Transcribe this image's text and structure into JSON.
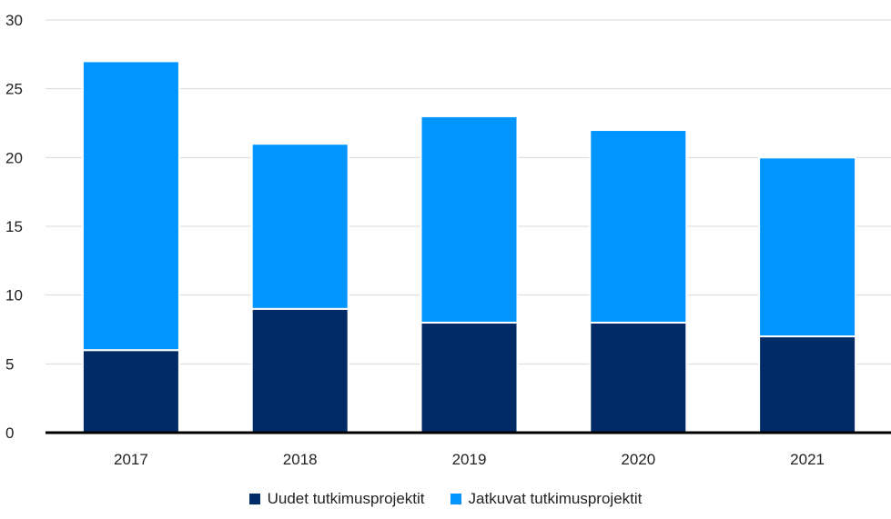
{
  "chart_data": {
    "type": "bar",
    "stacked": true,
    "categories": [
      "2017",
      "2018",
      "2019",
      "2020",
      "2021"
    ],
    "series": [
      {
        "name": "Uudet tutkimusprojektit",
        "values": [
          6,
          9,
          8,
          8,
          7
        ],
        "color": "#002b66"
      },
      {
        "name": "Jatkuvat tutkimusprojektit",
        "values": [
          21,
          12,
          15,
          14,
          13
        ],
        "color": "#0095ff"
      }
    ],
    "ylim": [
      0,
      30
    ],
    "yticks": [
      0,
      5,
      10,
      15,
      20,
      25,
      30
    ],
    "grid": true,
    "legend_position": "bottom",
    "title": "",
    "xlabel": "",
    "ylabel": ""
  }
}
